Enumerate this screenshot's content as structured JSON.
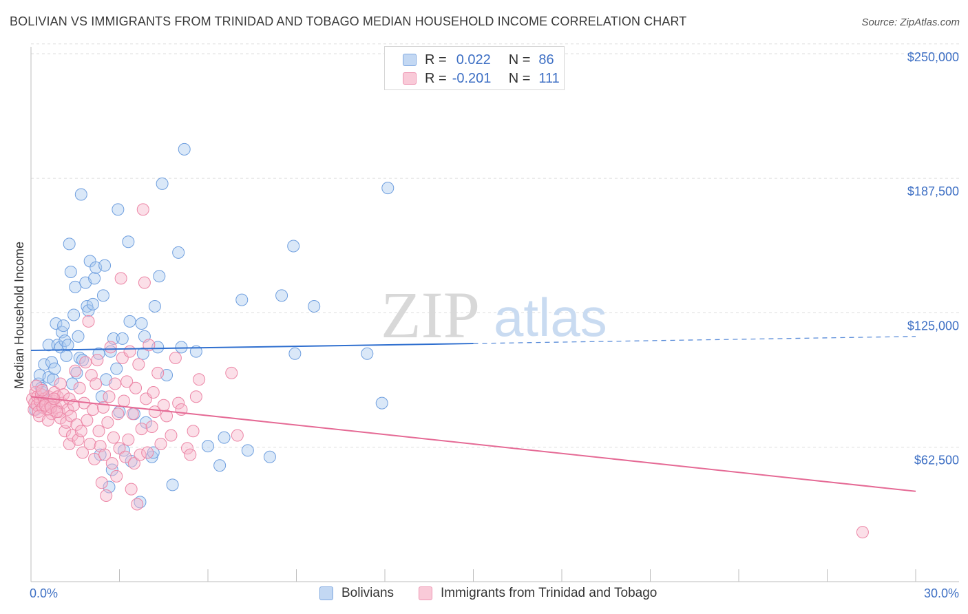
{
  "title": "BOLIVIAN VS IMMIGRANTS FROM TRINIDAD AND TOBAGO MEDIAN HOUSEHOLD INCOME CORRELATION CHART",
  "source": "Source: ZipAtlas.com",
  "watermark": {
    "zip": "ZIP",
    "atlas": "atlas"
  },
  "legend": {
    "rows": [
      {
        "r_label": "R =",
        "r_value": "0.022",
        "n_label": "N =",
        "n_value": "86"
      },
      {
        "r_label": "R =",
        "r_value": "-0.201",
        "n_label": "N =",
        "n_value": "111"
      }
    ]
  },
  "colors": {
    "blue_fill": "#aecbf0",
    "blue_stroke": "#6f9fdf",
    "blue_line": "#2f6fcf",
    "pink_fill": "#f7b8cc",
    "pink_stroke": "#ec86a6",
    "pink_line": "#e56a95",
    "tick_text": "#3d6fc4",
    "grid": "#dddddd"
  },
  "chart_data": {
    "type": "scatter",
    "title": "BOLIVIAN VS IMMIGRANTS FROM TRINIDAD AND TOBAGO MEDIAN HOUSEHOLD INCOME CORRELATION CHART",
    "xlabel": "",
    "ylabel": "Median Household Income",
    "xlim": [
      0,
      30
    ],
    "ylim": [
      0,
      256000
    ],
    "x_tick_labels": [
      "0.0%",
      "30.0%"
    ],
    "y_ticks": [
      62500,
      125000,
      187500,
      250000
    ],
    "y_tick_labels": [
      "$62,500",
      "$125,000",
      "$187,500",
      "$250,000"
    ],
    "legend_position": "top-center",
    "grid": true,
    "series": [
      {
        "name": "Bolivians",
        "r": 0.022,
        "n": 86,
        "trend": {
          "x": [
            0,
            15,
            30
          ],
          "y": [
            107500,
            110700,
            114000
          ],
          "solid_until": 15
        },
        "points": [
          [
            0.15,
            80000
          ],
          [
            0.25,
            92000
          ],
          [
            0.3,
            96000
          ],
          [
            0.4,
            88000
          ],
          [
            0.45,
            101000
          ],
          [
            0.5,
            84000
          ],
          [
            0.6,
            95000
          ],
          [
            0.6,
            110000
          ],
          [
            0.7,
            102000
          ],
          [
            0.75,
            94000
          ],
          [
            0.8,
            99000
          ],
          [
            0.85,
            120000
          ],
          [
            0.9,
            110000
          ],
          [
            1.0,
            109000
          ],
          [
            1.05,
            116000
          ],
          [
            1.1,
            119000
          ],
          [
            1.15,
            112000
          ],
          [
            1.2,
            105000
          ],
          [
            1.25,
            110000
          ],
          [
            1.3,
            157000
          ],
          [
            1.35,
            144000
          ],
          [
            1.4,
            92000
          ],
          [
            1.45,
            124000
          ],
          [
            1.5,
            137000
          ],
          [
            1.6,
            114000
          ],
          [
            1.65,
            104000
          ],
          [
            1.7,
            180000
          ],
          [
            1.75,
            103000
          ],
          [
            1.85,
            139000
          ],
          [
            1.9,
            128000
          ],
          [
            1.95,
            126000
          ],
          [
            2.0,
            149000
          ],
          [
            2.1,
            129000
          ],
          [
            2.15,
            141000
          ],
          [
            2.2,
            146000
          ],
          [
            2.3,
            106000
          ],
          [
            2.35,
            59000
          ],
          [
            2.4,
            86000
          ],
          [
            2.45,
            133000
          ],
          [
            2.5,
            147000
          ],
          [
            2.55,
            94000
          ],
          [
            2.65,
            44000
          ],
          [
            2.7,
            107000
          ],
          [
            2.75,
            52000
          ],
          [
            2.8,
            113000
          ],
          [
            2.9,
            99000
          ],
          [
            2.95,
            173000
          ],
          [
            3.0,
            79000
          ],
          [
            3.1,
            113000
          ],
          [
            3.15,
            61000
          ],
          [
            3.3,
            158000
          ],
          [
            3.35,
            121000
          ],
          [
            3.4,
            56000
          ],
          [
            3.5,
            78000
          ],
          [
            3.7,
            37000
          ],
          [
            3.75,
            120000
          ],
          [
            3.8,
            106000
          ],
          [
            3.85,
            114000
          ],
          [
            3.9,
            74000
          ],
          [
            4.1,
            58000
          ],
          [
            4.15,
            60000
          ],
          [
            4.2,
            128000
          ],
          [
            4.3,
            109000
          ],
          [
            4.35,
            142000
          ],
          [
            4.45,
            185000
          ],
          [
            4.6,
            96000
          ],
          [
            4.8,
            45000
          ],
          [
            5.0,
            153000
          ],
          [
            5.1,
            109000
          ],
          [
            5.2,
            201000
          ],
          [
            5.6,
            107000
          ],
          [
            6.0,
            63000
          ],
          [
            6.4,
            54000
          ],
          [
            6.55,
            67000
          ],
          [
            7.15,
            131000
          ],
          [
            7.35,
            61000
          ],
          [
            8.1,
            58000
          ],
          [
            8.5,
            133000
          ],
          [
            8.9,
            156000
          ],
          [
            8.95,
            106000
          ],
          [
            9.6,
            128000
          ],
          [
            11.4,
            106000
          ],
          [
            11.9,
            83000
          ],
          [
            12.1,
            183000
          ],
          [
            0.35,
            90000
          ],
          [
            1.55,
            97000
          ]
        ]
      },
      {
        "name": "Immigrants from Trinidad and Tobago",
        "r": -0.201,
        "n": 111,
        "trend": {
          "x": [
            0,
            30
          ],
          "y": [
            86000,
            42000
          ]
        },
        "points": [
          [
            0.05,
            85000
          ],
          [
            0.1,
            80000
          ],
          [
            0.12,
            83000
          ],
          [
            0.15,
            88000
          ],
          [
            0.2,
            82000
          ],
          [
            0.22,
            86000
          ],
          [
            0.25,
            79000
          ],
          [
            0.3,
            84000
          ],
          [
            0.35,
            87000
          ],
          [
            0.4,
            81000
          ],
          [
            0.45,
            85000
          ],
          [
            0.5,
            83000
          ],
          [
            0.55,
            80000
          ],
          [
            0.6,
            86000
          ],
          [
            0.65,
            82000
          ],
          [
            0.7,
            78000
          ],
          [
            0.75,
            84000
          ],
          [
            0.8,
            88000
          ],
          [
            0.85,
            81000
          ],
          [
            0.9,
            86000
          ],
          [
            0.95,
            79000
          ],
          [
            1.0,
            92000
          ],
          [
            1.0,
            76000
          ],
          [
            1.05,
            83000
          ],
          [
            1.1,
            87000
          ],
          [
            1.15,
            70000
          ],
          [
            1.2,
            74000
          ],
          [
            1.25,
            80000
          ],
          [
            1.3,
            85000
          ],
          [
            1.3,
            64000
          ],
          [
            1.35,
            77000
          ],
          [
            1.4,
            68000
          ],
          [
            1.45,
            82000
          ],
          [
            1.5,
            98000
          ],
          [
            1.55,
            73000
          ],
          [
            1.6,
            66000
          ],
          [
            1.65,
            90000
          ],
          [
            1.7,
            70000
          ],
          [
            1.75,
            60000
          ],
          [
            1.8,
            83000
          ],
          [
            1.85,
            102000
          ],
          [
            1.9,
            75000
          ],
          [
            1.95,
            121000
          ],
          [
            2.0,
            64000
          ],
          [
            2.05,
            96000
          ],
          [
            2.1,
            80000
          ],
          [
            2.15,
            57000
          ],
          [
            2.2,
            92000
          ],
          [
            2.25,
            103000
          ],
          [
            2.3,
            70000
          ],
          [
            2.35,
            63000
          ],
          [
            2.4,
            46000
          ],
          [
            2.45,
            81000
          ],
          [
            2.5,
            59000
          ],
          [
            2.55,
            40000
          ],
          [
            2.6,
            74000
          ],
          [
            2.65,
            86000
          ],
          [
            2.7,
            109000
          ],
          [
            2.75,
            55000
          ],
          [
            2.8,
            67000
          ],
          [
            2.85,
            92000
          ],
          [
            2.9,
            49000
          ],
          [
            2.95,
            78000
          ],
          [
            3.0,
            62000
          ],
          [
            3.05,
            141000
          ],
          [
            3.1,
            104000
          ],
          [
            3.15,
            84000
          ],
          [
            3.2,
            58000
          ],
          [
            3.25,
            93000
          ],
          [
            3.3,
            66000
          ],
          [
            3.35,
            107000
          ],
          [
            3.4,
            43000
          ],
          [
            3.45,
            78000
          ],
          [
            3.5,
            55000
          ],
          [
            3.55,
            90000
          ],
          [
            3.6,
            36000
          ],
          [
            3.65,
            101000
          ],
          [
            3.7,
            59000
          ],
          [
            3.75,
            71000
          ],
          [
            3.8,
            173000
          ],
          [
            3.85,
            139000
          ],
          [
            3.9,
            85000
          ],
          [
            3.95,
            60000
          ],
          [
            4.0,
            110000
          ],
          [
            4.1,
            72000
          ],
          [
            4.15,
            88000
          ],
          [
            4.2,
            79000
          ],
          [
            4.3,
            97000
          ],
          [
            4.4,
            64000
          ],
          [
            4.5,
            82000
          ],
          [
            4.6,
            77000
          ],
          [
            4.75,
            68000
          ],
          [
            4.9,
            104000
          ],
          [
            5.0,
            83000
          ],
          [
            5.1,
            80000
          ],
          [
            5.3,
            62000
          ],
          [
            5.4,
            59000
          ],
          [
            5.5,
            70000
          ],
          [
            5.6,
            86000
          ],
          [
            5.7,
            94000
          ],
          [
            6.8,
            97000
          ],
          [
            7.0,
            68000
          ],
          [
            28.2,
            23000
          ],
          [
            0.18,
            91000
          ],
          [
            0.28,
            77000
          ],
          [
            0.38,
            89000
          ],
          [
            0.48,
            82000
          ],
          [
            0.58,
            75000
          ],
          [
            0.68,
            81000
          ],
          [
            0.78,
            85000
          ],
          [
            0.88,
            79000
          ]
        ]
      }
    ]
  }
}
